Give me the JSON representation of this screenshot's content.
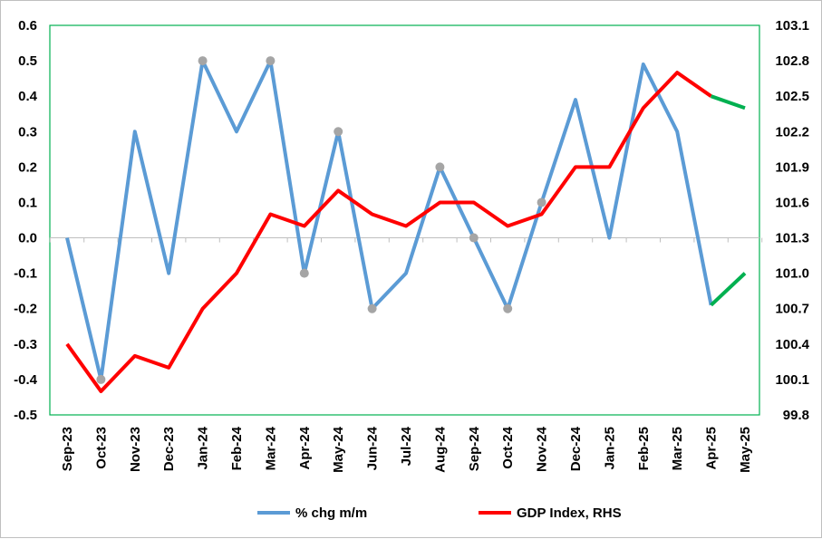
{
  "chart_data": {
    "type": "line",
    "title": "",
    "xlabel": "",
    "ylabel": "",
    "categories": [
      "Sep-23",
      "Oct-23",
      "Nov-23",
      "Dec-23",
      "Jan-24",
      "Feb-24",
      "Mar-24",
      "Apr-24",
      "May-24",
      "Jun-24",
      "Jul-24",
      "Aug-24",
      "Sep-24",
      "Oct-24",
      "Nov-24",
      "Dec-24",
      "Jan-25",
      "Feb-25",
      "Mar-25",
      "Apr-25",
      "May-25"
    ],
    "y_left": {
      "min": -0.5,
      "max": 0.6,
      "step": 0.1,
      "ticks": [
        "-0.5",
        "-0.4",
        "-0.3",
        "-0.2",
        "-0.1",
        "0.0",
        "0.1",
        "0.2",
        "0.3",
        "0.4",
        "0.5",
        "0.6"
      ]
    },
    "y_right": {
      "min": 99.8,
      "max": 103.1,
      "step": 0.3,
      "ticks": [
        "99.8",
        "100.1",
        "100.4",
        "100.7",
        "101.0",
        "101.3",
        "101.6",
        "101.9",
        "102.2",
        "102.5",
        "102.8",
        "103.1"
      ]
    },
    "series": [
      {
        "name": "% chg m/m",
        "axis": "left",
        "color": "#5b9bd5",
        "projection_color": "#00b050",
        "projection_from_index": 19,
        "values": [
          0.0,
          -0.4,
          0.3,
          -0.1,
          0.5,
          0.3,
          0.5,
          -0.1,
          0.3,
          -0.2,
          -0.1,
          0.2,
          0.0,
          -0.2,
          0.1,
          0.39,
          0.0,
          0.49,
          0.3,
          -0.19,
          -0.1
        ],
        "marker_indices": [
          1,
          4,
          6,
          7,
          8,
          9,
          11,
          12,
          13,
          14
        ],
        "marker_color": "#a5a5a5"
      },
      {
        "name": "GDP Index, RHS",
        "axis": "right",
        "color": "#ff0000",
        "projection_color": "#00b050",
        "projection_from_index": 19,
        "values": [
          100.4,
          100.0,
          100.3,
          100.2,
          100.7,
          101.0,
          101.5,
          101.4,
          101.7,
          101.5,
          101.4,
          101.6,
          101.6,
          101.4,
          101.5,
          101.9,
          101.9,
          102.4,
          102.7,
          102.5,
          102.4
        ]
      }
    ],
    "legend": {
      "position": "bottom"
    },
    "grid": false
  }
}
